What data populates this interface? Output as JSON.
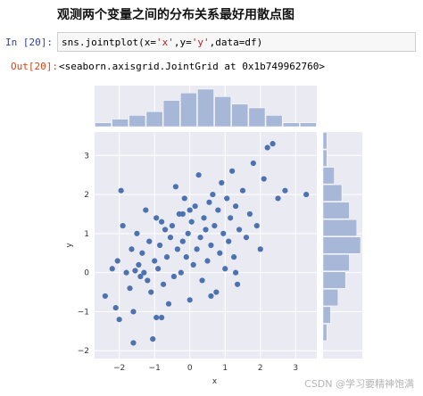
{
  "heading": "观测两个变量之间的分布关系最好用散点图",
  "cell": {
    "in_prompt": "In  [20]:",
    "out_prompt": "Out[20]:",
    "code_prefix": "sns.jointplot(x=",
    "code_x": "'x'",
    "code_mid": ",y=",
    "code_y": "'y'",
    "code_suffix": ",data=df)",
    "output": "<seaborn.axisgrid.JointGrid at 0x1b749962760>"
  },
  "watermark": "CSDN @学习要精神饱满",
  "chart_data": {
    "type": "scatter",
    "title": "",
    "xlabel": "x",
    "ylabel": "y",
    "xlim": [
      -2.7,
      3.6
    ],
    "ylim": [
      -2.2,
      3.6
    ],
    "xticks": [
      -2,
      -1,
      0,
      1,
      2,
      3
    ],
    "yticks": [
      -2,
      -1,
      0,
      1,
      2,
      3
    ],
    "background": "#eaeaf2",
    "point_color": "#4c72b0",
    "hist_color": "#a7b7d7",
    "grid": true,
    "points": [
      [
        -2.4,
        -0.6
      ],
      [
        -2.2,
        0.1
      ],
      [
        -2.1,
        -0.9
      ],
      [
        -2.05,
        0.3
      ],
      [
        -2.0,
        -1.2
      ],
      [
        -1.95,
        2.1
      ],
      [
        -1.9,
        1.2
      ],
      [
        -1.8,
        0.0
      ],
      [
        -1.7,
        -0.4
      ],
      [
        -1.65,
        0.6
      ],
      [
        -1.6,
        -1.8
      ],
      [
        -1.55,
        0.05
      ],
      [
        -1.5,
        1.0
      ],
      [
        -1.45,
        0.2
      ],
      [
        -1.4,
        -0.1
      ],
      [
        -1.35,
        0.5
      ],
      [
        -1.3,
        0.0
      ],
      [
        -1.25,
        1.6
      ],
      [
        -1.2,
        -0.2
      ],
      [
        -1.15,
        0.8
      ],
      [
        -1.1,
        -0.5
      ],
      [
        -1.05,
        -1.7
      ],
      [
        -1.0,
        0.3
      ],
      [
        -0.95,
        1.4
      ],
      [
        -0.9,
        0.1
      ],
      [
        -0.85,
        0.7
      ],
      [
        -0.8,
        1.3
      ],
      [
        -0.75,
        -0.3
      ],
      [
        -0.7,
        1.1
      ],
      [
        -0.65,
        0.4
      ],
      [
        -0.6,
        -0.8
      ],
      [
        -0.55,
        0.9
      ],
      [
        -0.5,
        1.2
      ],
      [
        -0.45,
        -0.1
      ],
      [
        -0.4,
        2.2
      ],
      [
        -0.35,
        0.6
      ],
      [
        -0.3,
        1.5
      ],
      [
        -0.25,
        0.0
      ],
      [
        -0.2,
        0.8
      ],
      [
        -0.15,
        1.9
      ],
      [
        -0.1,
        0.4
      ],
      [
        -0.05,
        1.0
      ],
      [
        0.0,
        -0.7
      ],
      [
        0.05,
        1.3
      ],
      [
        0.1,
        0.2
      ],
      [
        0.15,
        1.7
      ],
      [
        0.2,
        0.6
      ],
      [
        0.25,
        2.5
      ],
      [
        0.3,
        0.9
      ],
      [
        0.35,
        -0.2
      ],
      [
        0.4,
        1.4
      ],
      [
        0.45,
        1.1
      ],
      [
        0.5,
        0.3
      ],
      [
        0.55,
        1.8
      ],
      [
        0.6,
        0.7
      ],
      [
        0.65,
        2.0
      ],
      [
        0.7,
        1.2
      ],
      [
        0.75,
        -0.5
      ],
      [
        0.8,
        1.6
      ],
      [
        0.85,
        0.5
      ],
      [
        0.9,
        2.3
      ],
      [
        0.95,
        1.0
      ],
      [
        1.0,
        0.1
      ],
      [
        1.05,
        1.9
      ],
      [
        1.1,
        0.8
      ],
      [
        1.15,
        1.4
      ],
      [
        1.2,
        2.6
      ],
      [
        1.25,
        0.4
      ],
      [
        1.3,
        1.7
      ],
      [
        1.35,
        -0.3
      ],
      [
        1.4,
        1.1
      ],
      [
        1.5,
        2.1
      ],
      [
        1.6,
        0.9
      ],
      [
        1.7,
        1.5
      ],
      [
        1.8,
        2.8
      ],
      [
        1.9,
        1.2
      ],
      [
        2.0,
        0.6
      ],
      [
        2.1,
        2.4
      ],
      [
        2.2,
        3.2
      ],
      [
        2.35,
        3.3
      ],
      [
        2.5,
        1.9
      ],
      [
        2.7,
        2.1
      ],
      [
        3.3,
        2.0
      ],
      [
        -0.8,
        -1.15
      ],
      [
        -0.95,
        -1.15
      ],
      [
        -1.6,
        -1.0
      ],
      [
        0.6,
        -0.6
      ],
      [
        1.3,
        0.0
      ],
      [
        0.0,
        1.6
      ],
      [
        -0.2,
        1.5
      ]
    ],
    "top_hist": [
      1,
      2,
      3,
      4,
      7,
      9,
      10,
      8,
      6,
      5,
      3,
      1,
      1
    ],
    "right_hist": [
      0,
      1,
      2,
      4,
      6,
      7,
      10,
      9,
      7,
      5,
      3,
      1,
      1
    ]
  }
}
